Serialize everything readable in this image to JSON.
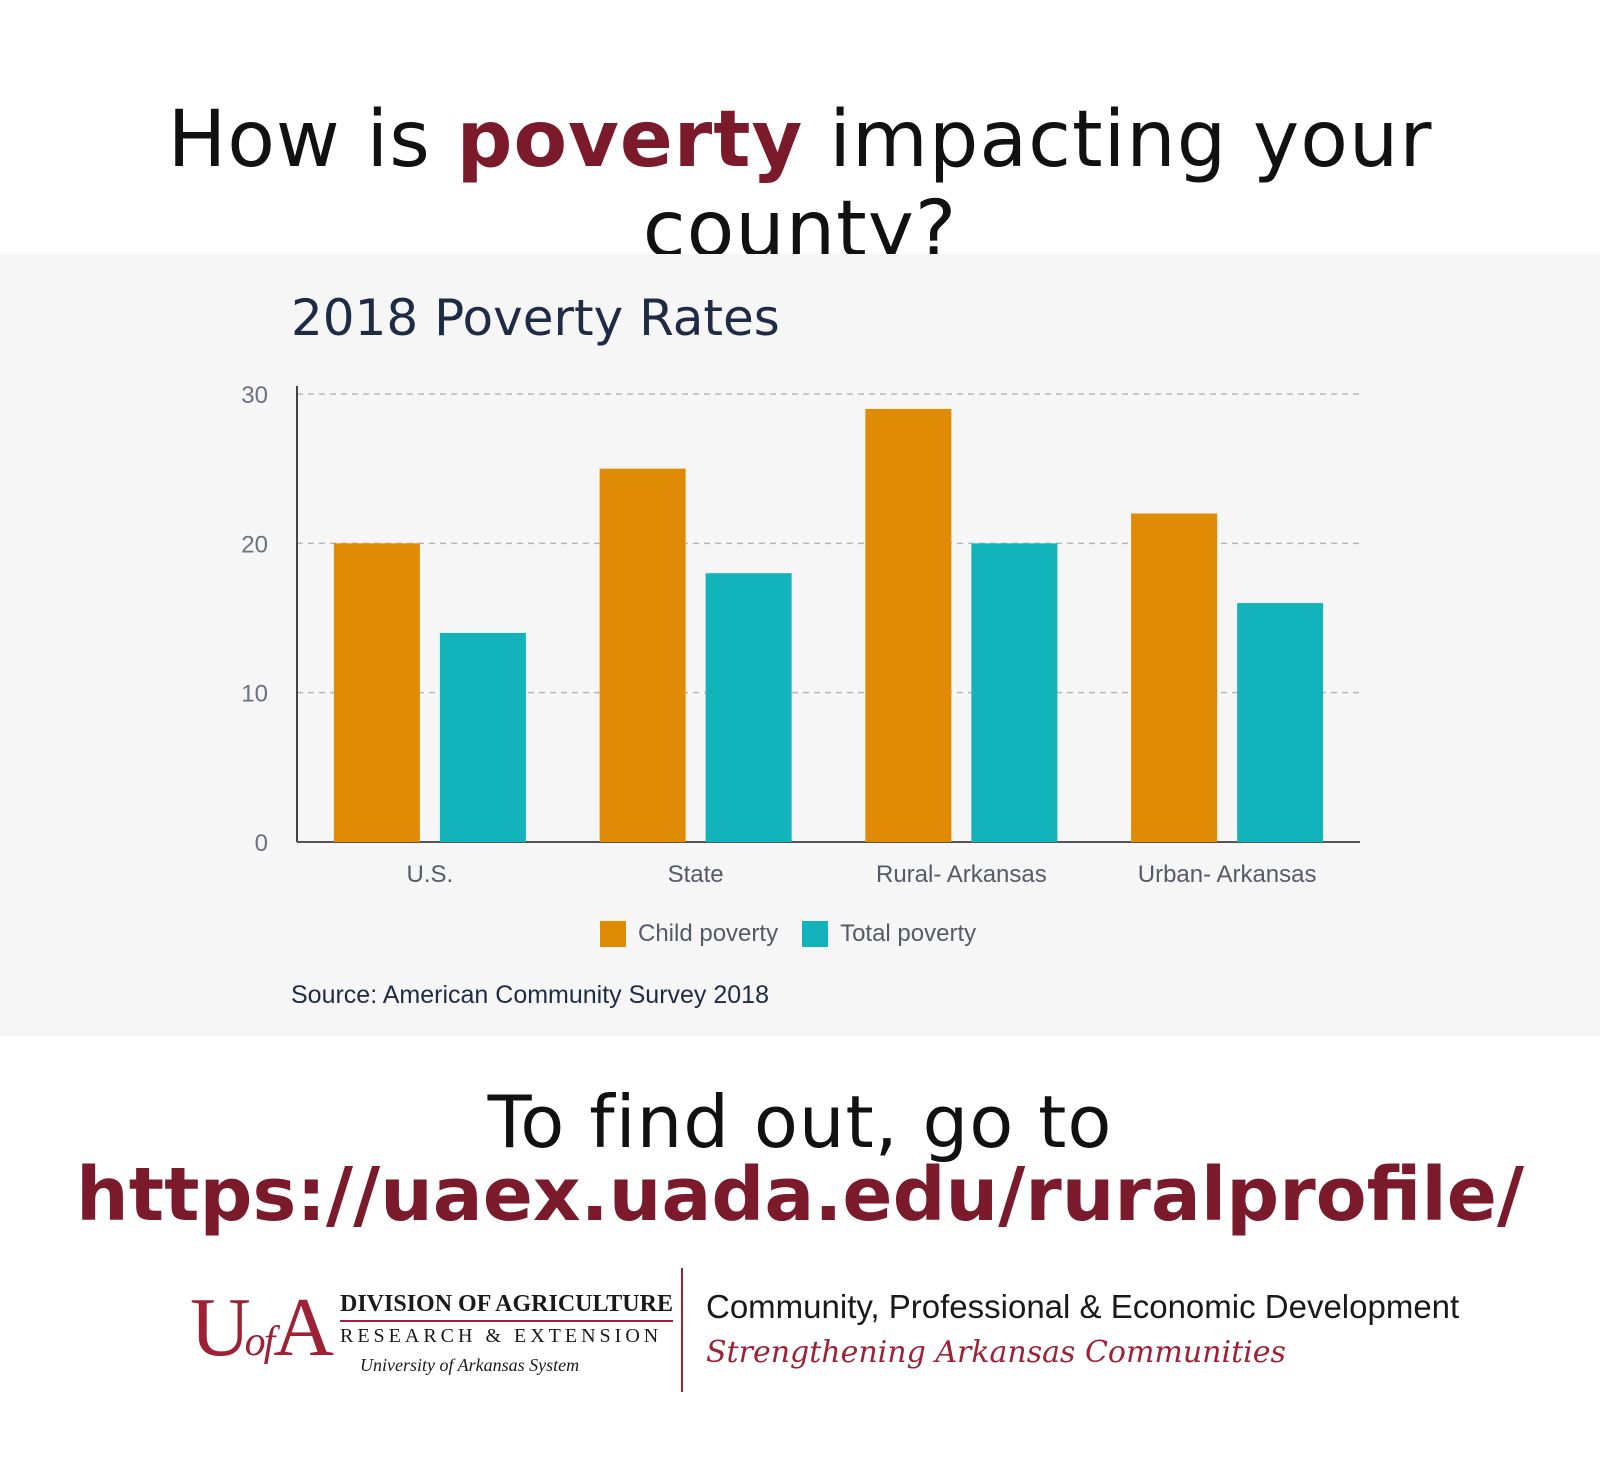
{
  "headline": {
    "prefix": "How is ",
    "emphasis": "poverty",
    "suffix": " impacting your county?"
  },
  "chart_data": {
    "type": "bar",
    "title": "2018 Poverty Rates",
    "categories": [
      "U.S.",
      "State",
      "Rural- Arkansas",
      "Urban- Arkansas"
    ],
    "series": [
      {
        "name": "Child poverty",
        "values": [
          20,
          25,
          29,
          22
        ],
        "color": "#e08b05"
      },
      {
        "name": "Total poverty",
        "values": [
          14,
          18,
          20,
          16
        ],
        "color": "#12b3bb"
      }
    ],
    "xlabel": "",
    "ylabel": "",
    "ylim": [
      0,
      30
    ],
    "yticks": [
      0,
      10,
      20,
      30
    ],
    "grid": true,
    "legend_position": "bottom-center",
    "source": "Source: American Community Survey 2018"
  },
  "cta": {
    "line1": "To find out, go to",
    "link": "https://uaex.uada.edu/ruralprofile/"
  },
  "footer": {
    "logo_mark_left": "U",
    "logo_mark_of": "of",
    "logo_mark_right": "A",
    "logo_line1": "DIVISION OF AGRICULTURE",
    "logo_line2": "RESEARCH & EXTENSION",
    "logo_line3": "University of Arkansas System",
    "dept_name": "Community, Professional & Economic Development",
    "dept_tagline": "Strengthening Arkansas Communities"
  }
}
